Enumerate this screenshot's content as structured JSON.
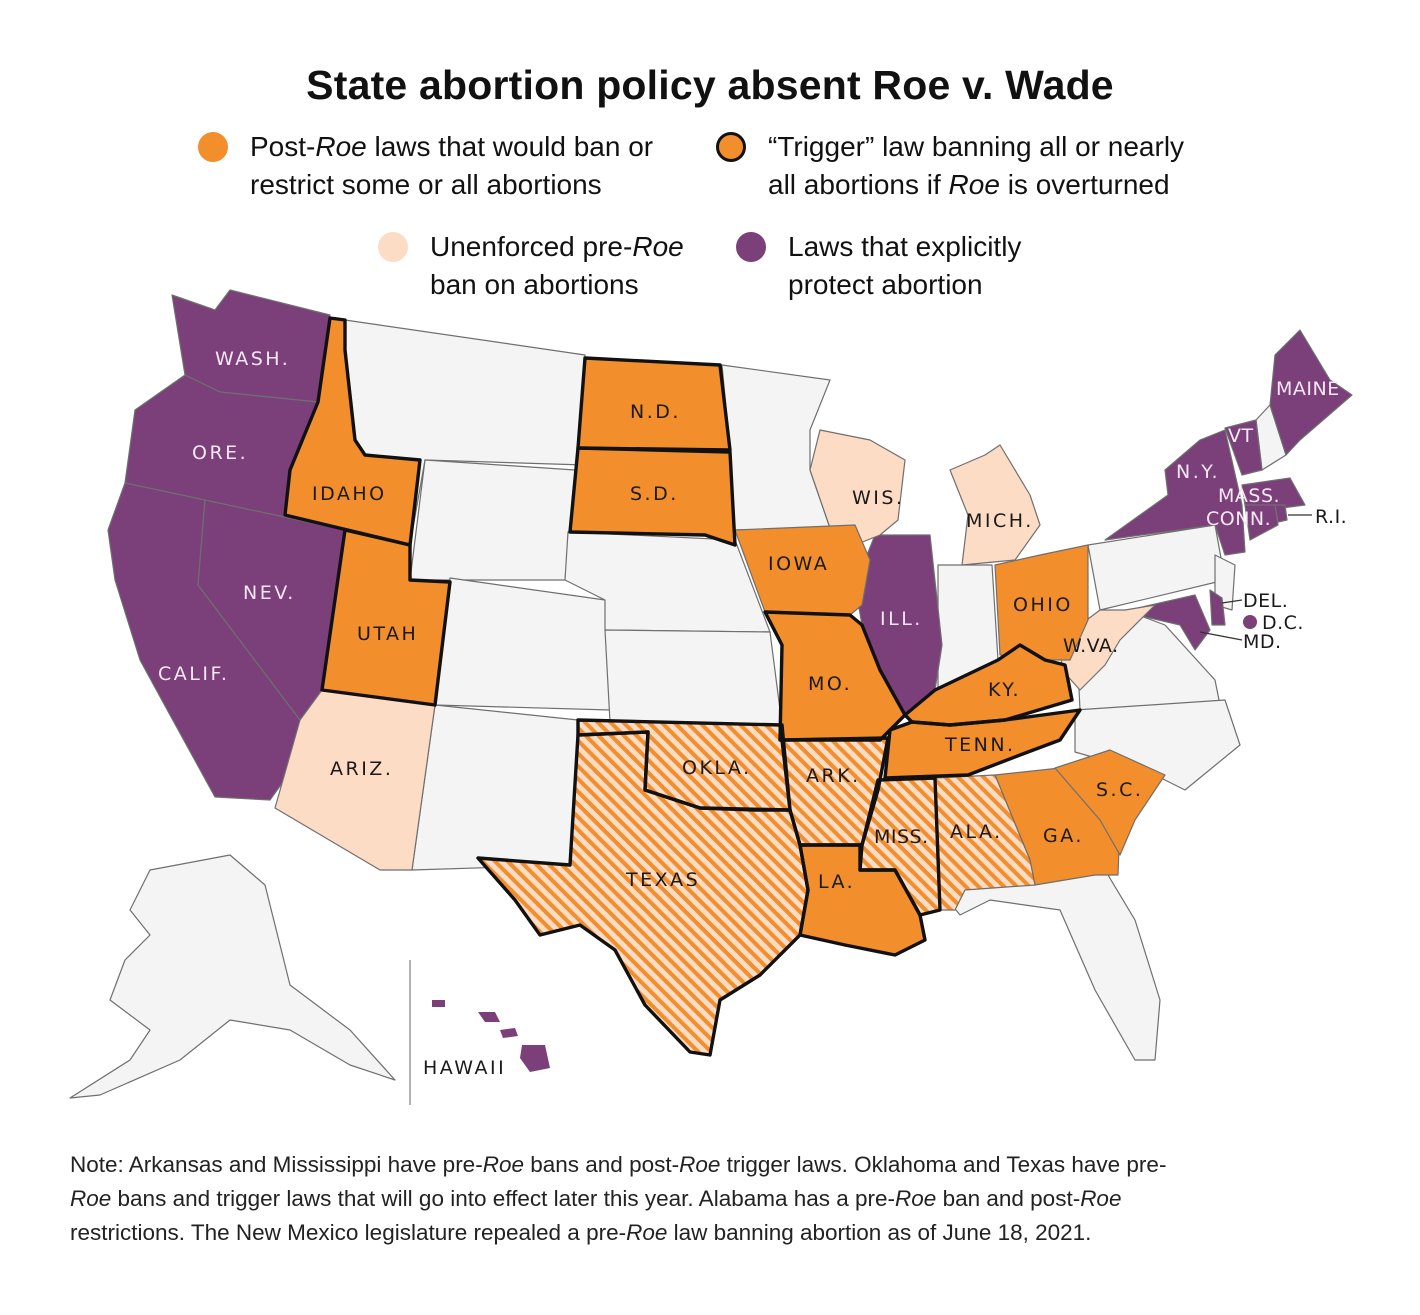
{
  "title": "State abortion policy absent Roe v. Wade",
  "legend": [
    {
      "text1_a": "Post-",
      "text1_em": "Roe",
      "text1_b": " laws that would ban or",
      "text2": "restrict some or all abortions",
      "color": "#f28e2b",
      "outline": false
    },
    {
      "text1": "“Trigger” law banning all or nearly",
      "text2_a": "all abortions if ",
      "text2_em": "Roe",
      "text2_b": " is overturned",
      "color": "#f28e2b",
      "outline": true
    },
    {
      "text1_a": "Unenforced pre-",
      "text1_em": "Roe",
      "text2": "ban on abortions",
      "color": "#fcdcc4",
      "outline": false
    },
    {
      "text1": "Laws that explicitly",
      "text2": "protect abortion",
      "color": "#7b3f7a",
      "outline": false
    }
  ],
  "colors": {
    "orange": "#f28e2b",
    "peach": "#fcdcc4",
    "purple": "#7b3f7a",
    "gray": "#f4f4f4",
    "border": "#6f6f6f"
  },
  "states": {
    "wash": "WASH.",
    "ore": "ORE.",
    "calif": "CALIF.",
    "nev": "NEV.",
    "idaho": "IDAHO",
    "utah": "UTAH",
    "ariz": "ARIZ.",
    "nd": "N.D.",
    "sd": "S.D.",
    "iowa": "IOWA",
    "mo": "MO.",
    "okla": "OKLA.",
    "texas": "TEXAS",
    "ark": "ARK.",
    "la": "LA.",
    "miss": "MISS.",
    "ala": "ALA.",
    "tenn": "TENN.",
    "ky": "KY.",
    "ill": "ILL.",
    "wis": "WIS.",
    "mich": "MICH.",
    "ohio": "OHIO",
    "wva": "W.VA.",
    "ga": "GA.",
    "sc": "S.C.",
    "ny": "N.Y.",
    "vt": "VT",
    "maine": "MAINE",
    "mass": "MASS.",
    "conn": "CONN.",
    "ri": "R.I.",
    "del": "DEL.",
    "dc": "D.C.",
    "md": "MD.",
    "hawaii": "HAWAII"
  },
  "note": {
    "l1_a": "Note: Arkansas and Mississippi have pre-",
    "l1_em1": "Roe",
    "l1_b": " bans and post-",
    "l1_em2": "Roe",
    "l1_c": " trigger laws. Oklahoma and Texas have pre-",
    "l2_em1": "Roe",
    "l2_a": " bans and trigger laws that will go into effect later this year. Alabama has a pre-",
    "l2_em2": "Roe",
    "l2_b": " ban and post-",
    "l2_em3": "Roe",
    "l3_a": "restrictions. The New Mexico legislature repealed a pre-",
    "l3_em": "Roe",
    "l3_b": " law banning abortion as of June 18, 2021."
  }
}
